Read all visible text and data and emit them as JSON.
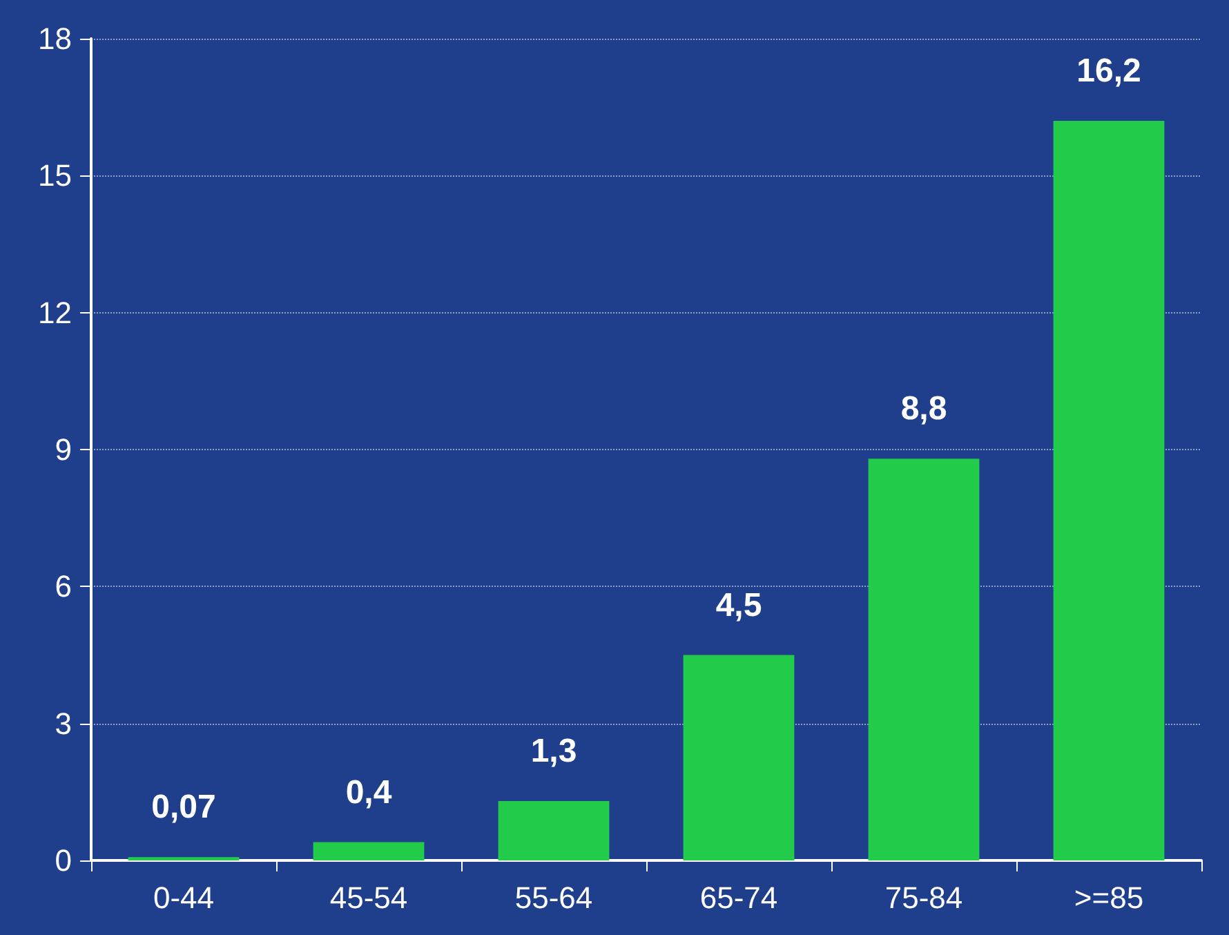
{
  "chart_data": {
    "type": "bar",
    "categories": [
      "0-44",
      "45-54",
      "55-64",
      "65-74",
      "75-84",
      ">=85"
    ],
    "values": [
      0.07,
      0.4,
      1.3,
      4.5,
      8.8,
      16.2
    ],
    "value_labels": [
      "0,07",
      "0,4",
      "1,3",
      "4,5",
      "8,8",
      "16,2"
    ],
    "color": "#22cc4a",
    "ylim": [
      0,
      18
    ],
    "yticks": [
      0,
      3,
      6,
      9,
      12,
      15,
      18
    ],
    "grid": "y"
  }
}
